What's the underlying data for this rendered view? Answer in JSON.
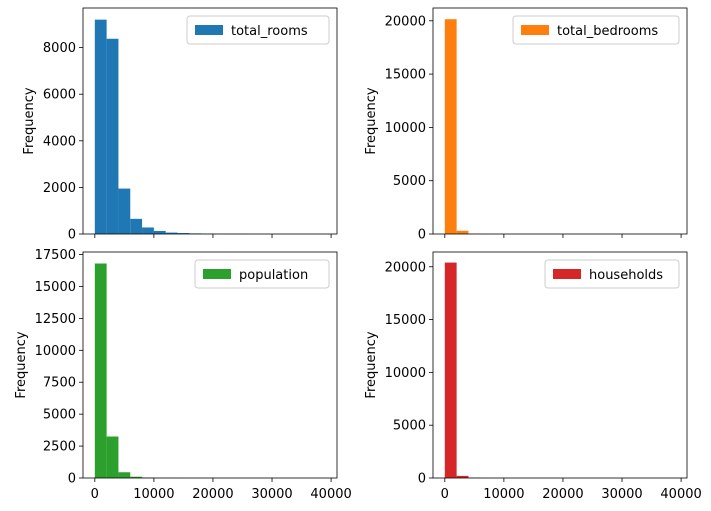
{
  "chart_data": [
    {
      "type": "bar",
      "series": [
        {
          "name": "total_rooms",
          "color": "#1f77b4"
        }
      ],
      "bin_width": 2000,
      "x": [
        0,
        2000,
        4000,
        6000,
        8000,
        10000,
        12000,
        14000,
        16000,
        18000,
        20000,
        22000,
        24000,
        26000,
        28000,
        30000,
        32000,
        34000,
        36000,
        38000
      ],
      "values": [
        9200,
        8380,
        1950,
        650,
        280,
        130,
        60,
        40,
        25,
        10,
        8,
        5,
        4,
        3,
        2,
        2,
        1,
        1,
        1,
        1
      ],
      "xlim": [
        -2000,
        41000
      ],
      "ylim": [
        0,
        9700
      ],
      "yticks": [
        0,
        2000,
        4000,
        6000,
        8000
      ],
      "xticks": [
        0,
        10000,
        20000,
        30000,
        40000
      ],
      "ylabel": "Frequency",
      "show_xtick_labels": false,
      "legend": "top-right"
    },
    {
      "type": "bar",
      "series": [
        {
          "name": "total_bedrooms",
          "color": "#ff7f0e"
        }
      ],
      "bin_width": 2000,
      "x": [
        0,
        2000,
        4000,
        6000,
        8000,
        10000,
        12000,
        14000,
        16000,
        18000,
        20000,
        22000,
        24000,
        26000,
        28000,
        30000,
        32000,
        34000,
        36000,
        38000
      ],
      "values": [
        20150,
        300,
        30,
        8,
        3,
        2,
        1,
        1,
        0,
        0,
        0,
        0,
        0,
        0,
        0,
        0,
        0,
        0,
        0,
        0
      ],
      "xlim": [
        -2000,
        41000
      ],
      "ylim": [
        0,
        21200
      ],
      "yticks": [
        0,
        5000,
        10000,
        15000,
        20000
      ],
      "xticks": [
        0,
        10000,
        20000,
        30000,
        40000
      ],
      "ylabel": "Frequency",
      "show_xtick_labels": false,
      "legend": "top-right"
    },
    {
      "type": "bar",
      "series": [
        {
          "name": "population",
          "color": "#2ca02c"
        }
      ],
      "bin_width": 2000,
      "x": [
        0,
        2000,
        4000,
        6000,
        8000,
        10000,
        12000,
        14000,
        16000,
        18000,
        20000,
        22000,
        24000,
        26000,
        28000,
        30000,
        32000,
        34000,
        36000,
        38000
      ],
      "values": [
        16800,
        3250,
        450,
        100,
        30,
        15,
        8,
        5,
        3,
        2,
        1,
        1,
        1,
        0,
        1,
        0,
        0,
        0,
        0,
        1
      ],
      "xlim": [
        -2000,
        41000
      ],
      "ylim": [
        0,
        17700
      ],
      "yticks": [
        0,
        2500,
        5000,
        7500,
        10000,
        12500,
        15000,
        17500
      ],
      "xticks": [
        0,
        10000,
        20000,
        30000,
        40000
      ],
      "ylabel": "Frequency",
      "show_xtick_labels": true,
      "legend": "top-right"
    },
    {
      "type": "bar",
      "series": [
        {
          "name": "households",
          "color": "#d62728"
        }
      ],
      "bin_width": 2000,
      "x": [
        0,
        2000,
        4000,
        6000,
        8000,
        10000,
        12000,
        14000,
        16000,
        18000,
        20000,
        22000,
        24000,
        26000,
        28000,
        30000,
        32000,
        34000,
        36000,
        38000
      ],
      "values": [
        20400,
        200,
        20,
        5,
        2,
        1,
        1,
        0,
        0,
        0,
        0,
        0,
        0,
        0,
        0,
        0,
        0,
        0,
        0,
        0
      ],
      "xlim": [
        -2000,
        41000
      ],
      "ylim": [
        0,
        21400
      ],
      "yticks": [
        0,
        5000,
        10000,
        15000,
        20000
      ],
      "xticks": [
        0,
        10000,
        20000,
        30000,
        40000
      ],
      "ylabel": "Frequency",
      "show_xtick_labels": true,
      "legend": "top-right"
    }
  ]
}
